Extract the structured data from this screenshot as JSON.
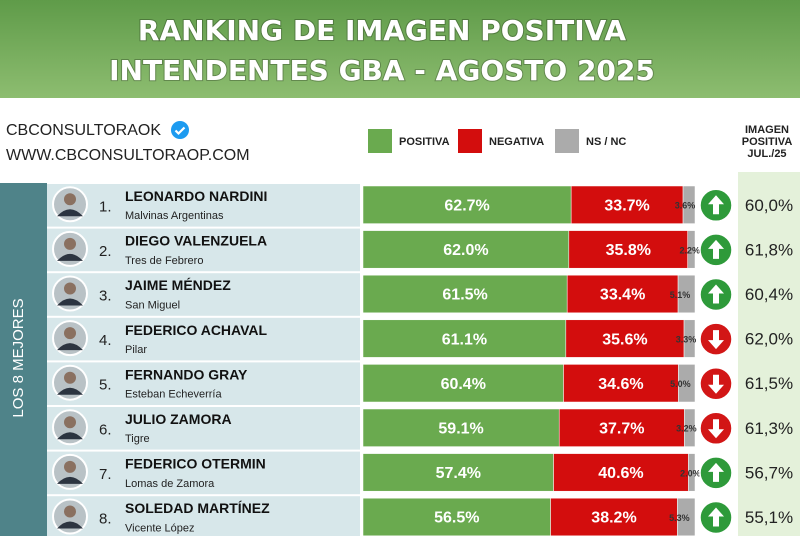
{
  "chart_data": {
    "type": "stacked-bar",
    "title": "RANKING DE IMAGEN POSITIVA",
    "subtitle": "INTENDENTES GBA - AGOSTO 2025",
    "source": "CBCONSULTORAOK",
    "website": "WWW.CBCONSULTORAOP.COM",
    "group_label": "LOS 8 MEJORES",
    "ranks": [
      "1.",
      "2.",
      "3.",
      "4.",
      "5.",
      "6.",
      "7.",
      "8."
    ],
    "categories": [
      "LEONARDO NARDINI",
      "DIEGO VALENZUELA",
      "JAIME MÉNDEZ",
      "FEDERICO ACHAVAL",
      "FERNANDO GRAY",
      "JULIO ZAMORA",
      "FEDERICO OTERMIN",
      "SOLEDAD MARTÍNEZ"
    ],
    "places": [
      "Malvinas Argentinas",
      "Tres de Febrero",
      "San Miguel",
      "Pilar",
      "Esteban Echeverría",
      "Tigre",
      "Lomas de Zamora",
      "Vicente López"
    ],
    "xlim": [
      0,
      100
    ],
    "series": [
      {
        "name": "POSITIVA",
        "color": "#6aaa4f",
        "values": [
          62.7,
          62.0,
          61.5,
          61.1,
          60.4,
          59.1,
          57.4,
          56.5
        ],
        "value_labels": [
          "62.7%",
          "62.0%",
          "61.5%",
          "61.1%",
          "60.4%",
          "59.1%",
          "57.4%",
          "56.5%"
        ]
      },
      {
        "name": "NEGATIVA",
        "color": "#d30d0d",
        "values": [
          33.7,
          35.8,
          33.4,
          35.6,
          34.6,
          37.7,
          40.6,
          38.2
        ],
        "value_labels": [
          "33.7%",
          "35.8%",
          "33.4%",
          "35.6%",
          "34.6%",
          "37.7%",
          "40.6%",
          "38.2%"
        ]
      },
      {
        "name": "NS / NC",
        "color": "#ababab",
        "values": [
          3.6,
          2.2,
          5.1,
          3.3,
          5.0,
          3.2,
          2.0,
          5.3
        ],
        "value_labels": [
          "3.6%",
          "2.2%",
          "5.1%",
          "3.3%",
          "5.0%",
          "3.2%",
          "2.0%",
          "5.3%"
        ]
      }
    ],
    "comparison": {
      "name": "IMAGEN POSITIVA JUL./25",
      "values": [
        60.0,
        61.8,
        60.4,
        62.0,
        61.5,
        61.3,
        56.7,
        55.1
      ],
      "value_labels": [
        "60,0%",
        "61,8%",
        "60,4%",
        "62,0%",
        "61,5%",
        "61,3%",
        "56,7%",
        "55,1%"
      ]
    }
  }
}
